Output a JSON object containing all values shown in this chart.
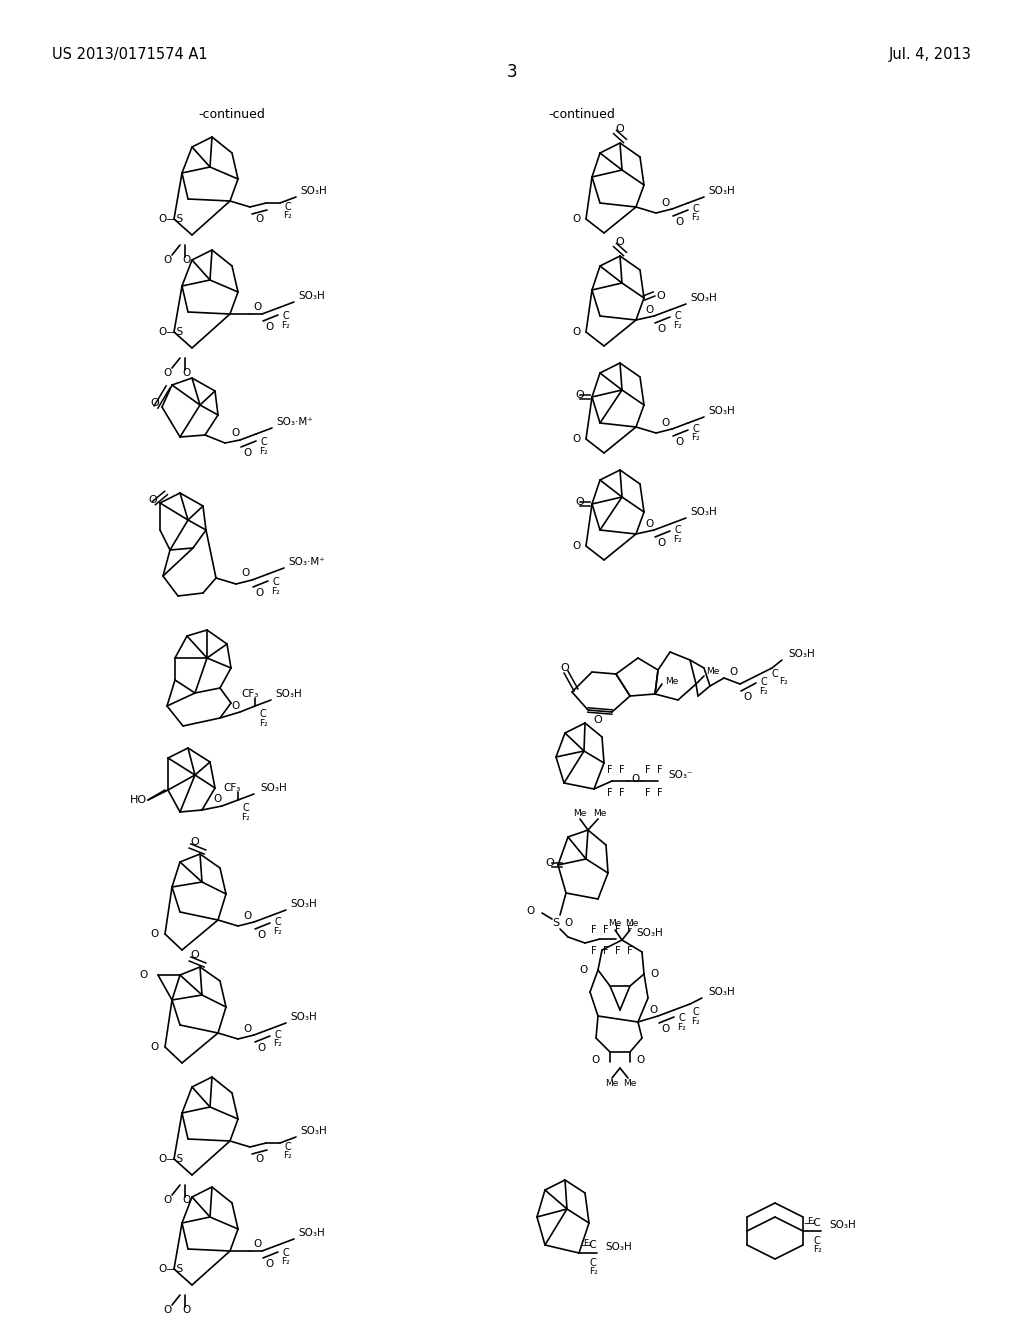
{
  "bg": "#ffffff",
  "header_left": "US 2013/0171574 A1",
  "header_right": "Jul. 4, 2013",
  "page_num": "3",
  "continued": "-continued"
}
